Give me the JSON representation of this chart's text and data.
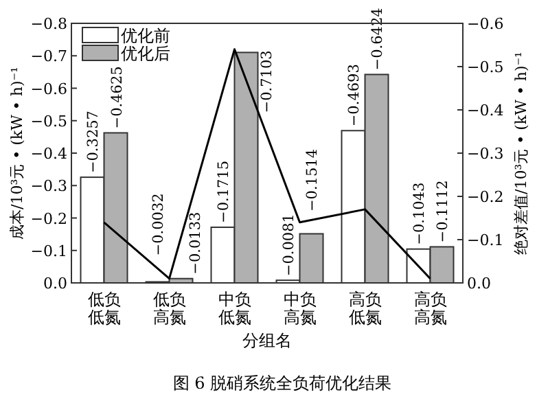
{
  "chart_data": {
    "type": "bar",
    "xlabel": "分组名",
    "ylabel": "成本/10³元 • (kW • h)⁻¹",
    "y2label": "绝对差值/10³元 • (kW • h)⁻¹",
    "categories": [
      "低负低氮",
      "低负高氮",
      "中负低氮",
      "中负高氮",
      "高负低氮",
      "高负高氮"
    ],
    "series": [
      {
        "name": "优化前",
        "color": "#ffffff",
        "values": [
          -0.3257,
          -0.0032,
          -0.1715,
          -0.0081,
          -0.4693,
          -0.1043
        ],
        "value_labels": [
          "−0.3257",
          "−0.0032",
          "−0.1715",
          "−0.0081",
          "−0.4693",
          "−0.1043"
        ]
      },
      {
        "name": "优化后",
        "color": "#b0b0b0",
        "values": [
          -0.4625,
          -0.0133,
          -0.7103,
          -0.1514,
          -0.6424,
          -0.1112
        ],
        "value_labels": [
          "−0.4625",
          "−0.0133",
          "−0.7103",
          "−0.1514",
          "−0.6424",
          "−0.1112"
        ]
      },
      {
        "type": "line",
        "axis": "y2",
        "color": "#000000",
        "values": [
          -0.14,
          -0.01,
          -0.54,
          -0.14,
          -0.17,
          -0.01
        ]
      }
    ],
    "ylim": [
      0,
      -0.8
    ],
    "yticks": [
      {
        "value": 0,
        "label": "0.0"
      },
      {
        "value": -0.1,
        "label": "−0.1"
      },
      {
        "value": -0.2,
        "label": "−0.2"
      },
      {
        "value": -0.3,
        "label": "−0.3"
      },
      {
        "value": -0.4,
        "label": "−0.4"
      },
      {
        "value": -0.5,
        "label": "−0.5"
      },
      {
        "value": -0.6,
        "label": "−0.6"
      },
      {
        "value": -0.7,
        "label": "−0.7"
      },
      {
        "value": -0.8,
        "label": "−0.8"
      }
    ],
    "y2lim": [
      0,
      -0.6
    ],
    "y2ticks": [
      {
        "value": 0,
        "label": "0.0"
      },
      {
        "value": -0.1,
        "label": "−0.1"
      },
      {
        "value": -0.2,
        "label": "−0.2"
      },
      {
        "value": -0.3,
        "label": "−0.3"
      },
      {
        "value": -0.4,
        "label": "−0.4"
      },
      {
        "value": -0.5,
        "label": "−0.5"
      },
      {
        "value": -0.6,
        "label": "−0.6"
      }
    ],
    "legend": "top left",
    "annotations": [
      "图 6    脱硝系统全负荷优化结果"
    ]
  }
}
